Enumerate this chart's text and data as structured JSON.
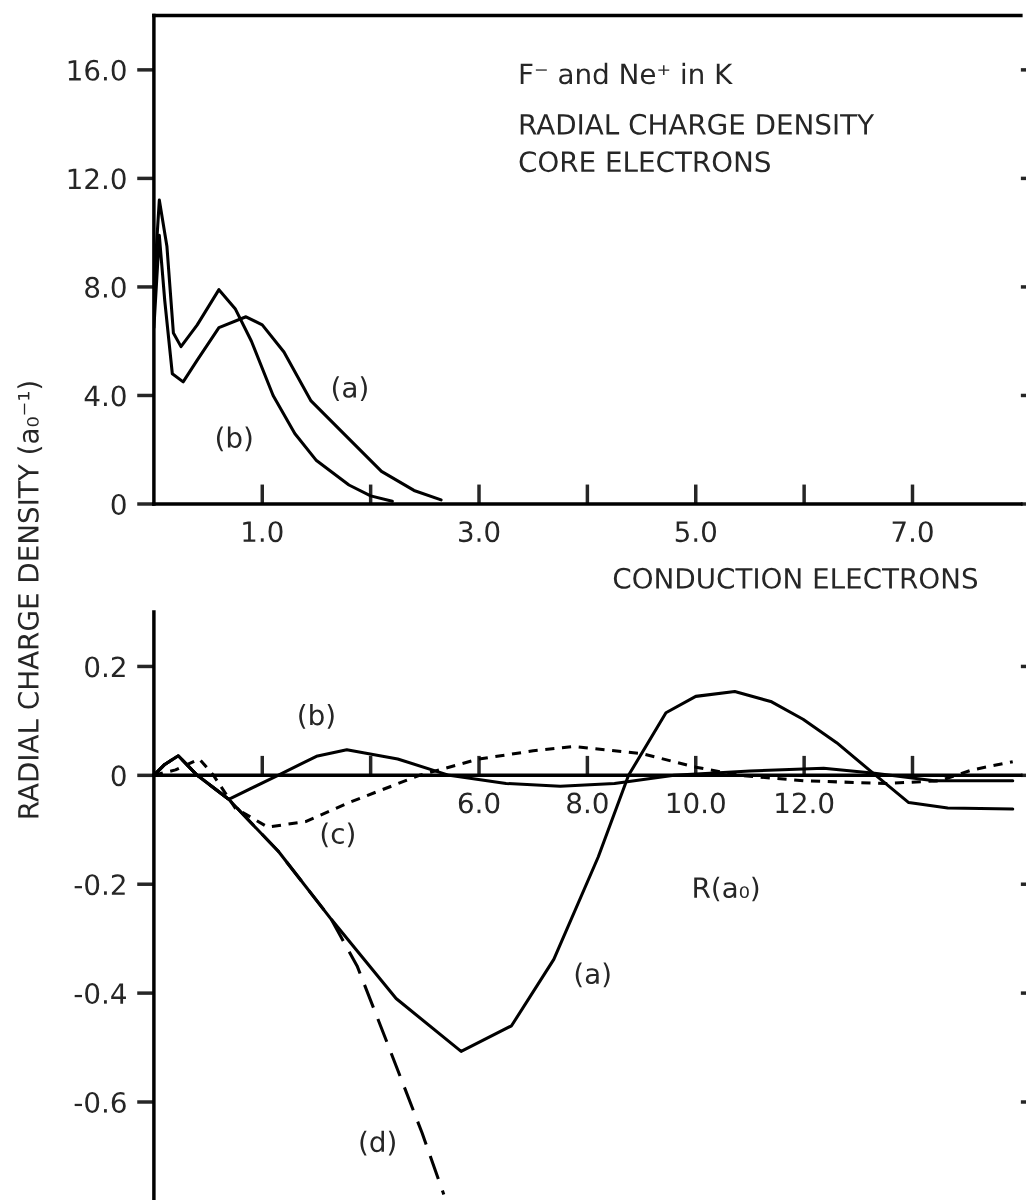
{
  "chart_data": [
    {
      "type": "line",
      "title": "F⁻ and Ne⁺ in K",
      "subtitle": "RADIAL CHARGE DENSITY\nCORE ELECTRONS",
      "ylabel": "RADIAL CHARGE DENSITY (a₀⁻¹)",
      "xlim": [
        0,
        8
      ],
      "xticks": [
        {
          "value": 1,
          "label": "1.0"
        },
        {
          "value": 2,
          "label": null
        },
        {
          "value": 3,
          "label": "3.0"
        },
        {
          "value": 4,
          "label": null
        },
        {
          "value": 5,
          "label": "5.0"
        },
        {
          "value": 6,
          "label": null
        },
        {
          "value": 7,
          "label": "7.0"
        }
      ],
      "ylim": [
        0,
        18
      ],
      "yticks": [
        0,
        {
          "value": 4,
          "label": "4.0"
        },
        {
          "value": 8,
          "label": "8.0"
        },
        {
          "value": 12,
          "label": "12.0"
        },
        {
          "value": 16,
          "label": "16.0"
        }
      ],
      "grid": false,
      "legend": false,
      "marker": "none",
      "series": [
        {
          "color": "#000000",
          "line_style": "solid",
          "x": [
            0,
            0.05,
            0.1,
            0.17,
            0.27,
            0.4,
            0.6,
            0.85,
            1.0,
            1.2,
            1.45,
            1.8,
            2.1,
            2.4,
            2.65
          ],
          "values": [
            6.5,
            9.9,
            7.5,
            4.8,
            4.5,
            5.3,
            6.5,
            6.9,
            6.6,
            5.6,
            3.8,
            2.4,
            1.2,
            0.5,
            0.15
          ]
        },
        {
          "color": "#000000",
          "line_style": "solid",
          "x": [
            0,
            0.05,
            0.12,
            0.18,
            0.25,
            0.4,
            0.6,
            0.75,
            0.9,
            1.1,
            1.3,
            1.5,
            1.8,
            2.0,
            2.2
          ],
          "values": [
            8.0,
            11.2,
            9.5,
            6.3,
            5.8,
            6.6,
            7.9,
            7.2,
            6.0,
            4.0,
            2.6,
            1.6,
            0.7,
            0.3,
            0.1
          ]
        }
      ],
      "annotations": [
        {
          "text": "(a)",
          "x": 1.45,
          "y": 3.8
        },
        {
          "text": "(b)",
          "x": 1.1,
          "y": 4.0
        }
      ]
    },
    {
      "type": "line",
      "title": "CONDUCTION ELECTRONS",
      "xlabel": "R(a₀)",
      "xlim": [
        0,
        16
      ],
      "xticks": [
        {
          "value": 2,
          "label": null
        },
        {
          "value": 4,
          "label": null
        },
        {
          "value": 6,
          "label": "6.0"
        },
        {
          "value": 8,
          "label": "8.0"
        },
        {
          "value": 10,
          "label": "10.0"
        },
        {
          "value": 12,
          "label": "12.0"
        },
        {
          "value": 14,
          "label": null
        }
      ],
      "ylim": [
        -0.78,
        0.3
      ],
      "yticks": [
        {
          "value": -0.6,
          "label": "-0.6"
        },
        {
          "value": -0.4,
          "label": "-0.4"
        },
        {
          "value": -0.2,
          "label": "-0.2"
        },
        0,
        0.2
      ],
      "grid": false,
      "legend": false,
      "marker": "none",
      "series": [
        {
          "color": "#000000",
          "line_style": "solid",
          "x": [
            0,
            0.2,
            0.45,
            0.8,
            1.38,
            2.3,
            3.27,
            4.47,
            5.67,
            6.6,
            7.38,
            8.2,
            8.76,
            9.45,
            10.0,
            10.72,
            11.4,
            11.98,
            12.6,
            13.2,
            13.93,
            14.65,
            15.85
          ],
          "values": [
            0,
            0.02,
            0.036,
            0.0,
            -0.044,
            -0.14,
            -0.264,
            -0.41,
            -0.507,
            -0.46,
            -0.338,
            -0.15,
            0,
            0.115,
            0.145,
            0.154,
            0.135,
            0.103,
            0.06,
            0.01,
            -0.05,
            -0.06,
            -0.062
          ]
        },
        {
          "color": "#000000",
          "line_style": "solid",
          "x": [
            0,
            0.2,
            0.45,
            0.8,
            1.38,
            2.29,
            3.0,
            3.56,
            4.5,
            5.45,
            6.5,
            7.5,
            8.5,
            9.6,
            11.0,
            12.36,
            13.3,
            14.4,
            15.85
          ],
          "values": [
            0,
            0.02,
            0.036,
            0.0,
            -0.044,
            0.0,
            0.035,
            0.047,
            0.03,
            0.0,
            -0.015,
            -0.02,
            -0.015,
            0.0,
            0.008,
            0.013,
            0.004,
            -0.01,
            -0.01
          ]
        },
        {
          "color": "#000000",
          "line_style": "dotted",
          "x": [
            0,
            0.4,
            0.84,
            1.1,
            1.5,
            2.1,
            2.8,
            3.6,
            4.9,
            6.0,
            7.0,
            7.75,
            9.0,
            10.0,
            10.8,
            12.0,
            13.5,
            14.5,
            15.1,
            15.85
          ],
          "values": [
            0,
            0.01,
            0.03,
            0.0,
            -0.06,
            -0.095,
            -0.085,
            -0.05,
            0.0,
            0.03,
            0.045,
            0.053,
            0.04,
            0.015,
            0.0,
            -0.01,
            -0.015,
            -0.01,
            0.01,
            0.025
          ]
        },
        {
          "color": "#000000",
          "line_style": "dashed",
          "x": [
            0,
            0.2,
            0.45,
            0.8,
            1.38,
            2.3,
            3.27,
            3.75,
            4.3,
            4.95,
            5.35
          ],
          "values": [
            0,
            0.02,
            0.036,
            0.0,
            -0.044,
            -0.14,
            -0.264,
            -0.35,
            -0.49,
            -0.657,
            -0.77
          ]
        }
      ],
      "annotations": [
        {
          "text": "(b)",
          "x": 3.0,
          "y": 0.035
        },
        {
          "text": "(c)",
          "x": 3.6,
          "y": -0.05
        },
        {
          "text": "(a)",
          "x": 7.38,
          "y": -0.338
        },
        {
          "text": "(d)",
          "x": 4.95,
          "y": -0.657
        }
      ]
    }
  ]
}
